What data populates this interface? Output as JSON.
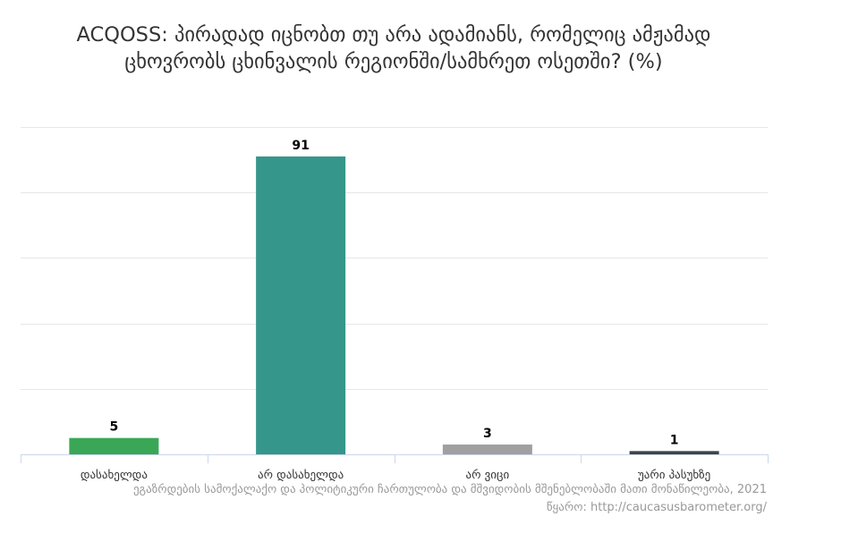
{
  "chart_data": {
    "type": "bar",
    "title": "ACQOSS: პირადად იცნობთ თუ არა ადამიანს, რომელიც ამჟამად ცხოვრობს ცხინვალის რეგიონში/სამხრეთ ოსეთში? (%)",
    "categories": [
      "დასახელდა",
      "არ დასახელდა",
      "არ ვიცი",
      "უარი პასუხზე"
    ],
    "values": [
      5,
      91,
      3,
      1
    ],
    "colors": [
      "#3aa757",
      "#35968c",
      "#a0a0a0",
      "#404448"
    ],
    "ylim": [
      0,
      100
    ],
    "grid": true,
    "legend": false
  },
  "credits": {
    "line1": "ეგაზრდების სამოქალაქო და პოლიტიკური ჩართულობა და მშვიდობის მშენებლობაში მათი მონაწილეობა, 2021",
    "line2": "წყარო: http://caucasusbarometer.org/"
  }
}
